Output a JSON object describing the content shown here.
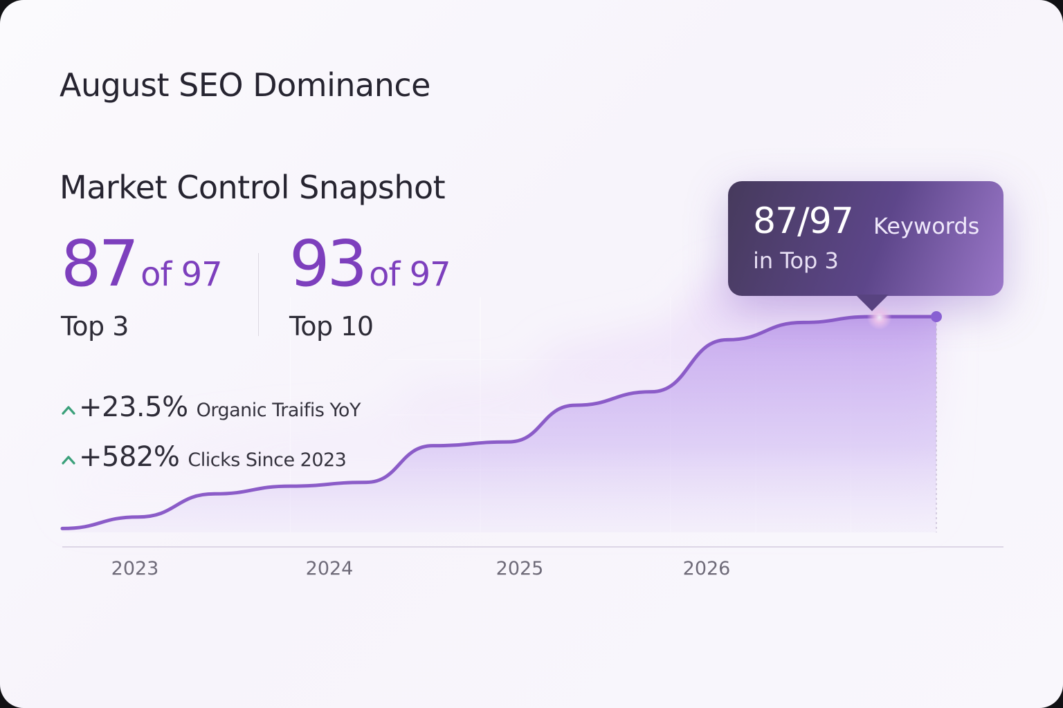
{
  "header": {
    "title": "August SEO Dominance",
    "subtitle": "Market Control Snapshot"
  },
  "stats": [
    {
      "value": "87",
      "of": "of 97",
      "label": "Top 3"
    },
    {
      "value": "93",
      "of": "of 97",
      "label": "Top 10"
    }
  ],
  "growth": [
    {
      "value": "+23.5%",
      "description": "Organic Traifis YoY",
      "icon": "arrow-up-icon",
      "color": "#3aa07a"
    },
    {
      "value": "+582%",
      "description": "Clicks Since 2023",
      "icon": "arrow-up-icon",
      "color": "#3aa07a"
    }
  ],
  "tooltip": {
    "value": "87/97",
    "unit": "Keywords",
    "line2": "in Top 3"
  },
  "colors": {
    "accent": "#7d3fbd",
    "line": "#8b5cc8",
    "fill": "#b392ea",
    "tooltip_bg": "#4f3d70"
  },
  "chart_data": {
    "type": "area",
    "x_ticks": [
      "2023",
      "2024",
      "2025",
      "2026"
    ],
    "x": [
      2022.6,
      2023.0,
      2023.4,
      2023.8,
      2024.2,
      2024.55,
      2024.95,
      2025.3,
      2025.7,
      2026.1,
      2026.5,
      2026.85,
      2027.2
    ],
    "values": [
      2,
      8,
      20,
      24,
      26,
      45,
      47,
      66,
      73,
      100,
      109,
      112,
      112
    ],
    "xlim": [
      2022.6,
      2027.2
    ],
    "grid": true,
    "legend": "none",
    "highlight": {
      "x": 2026.9,
      "label": "87/97 Keywords in Top 3"
    },
    "endpoint": {
      "x": 2027.2
    }
  }
}
